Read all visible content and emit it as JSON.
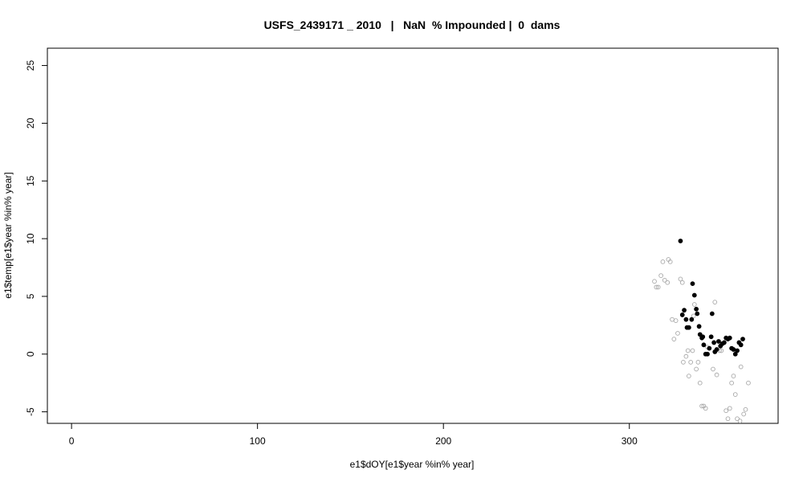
{
  "chart_data": {
    "type": "scatter",
    "title": "USFS_2439171 _ 2010   |   NaN  % Impounded |  0  dams",
    "xlabel": "e1$dOY[e1$year %in% year]",
    "ylabel": "e1$temp[e1$year %in% year]",
    "xlim": [
      -13,
      380
    ],
    "ylim": [
      -6,
      26.5
    ],
    "x_ticks": [
      0,
      100,
      200,
      300
    ],
    "x_tick_labels": [
      "0",
      "100",
      "200",
      "300"
    ],
    "y_ticks": [
      -5,
      0,
      5,
      10,
      15,
      20,
      25
    ],
    "y_tick_labels": [
      "-5",
      "0",
      "5",
      "10",
      "15",
      "20",
      "25"
    ],
    "grid": false,
    "legend": "none",
    "series": [
      {
        "marker": "open-circle",
        "color": "#a8a8a8",
        "points": [
          [
            313.5,
            6.3
          ],
          [
            314.5,
            5.8
          ],
          [
            315.5,
            5.8
          ],
          [
            317,
            6.8
          ],
          [
            318,
            8.0
          ],
          [
            319,
            6.4
          ],
          [
            320.5,
            6.2
          ],
          [
            321,
            8.2
          ],
          [
            322,
            8.0
          ],
          [
            323,
            3.0
          ],
          [
            324,
            1.3
          ],
          [
            325,
            2.9
          ],
          [
            326,
            1.8
          ],
          [
            327.5,
            6.5
          ],
          [
            328.5,
            6.2
          ],
          [
            329,
            -0.7
          ],
          [
            330.5,
            -0.2
          ],
          [
            331.5,
            0.3
          ],
          [
            332,
            -1.9
          ],
          [
            333,
            -0.7
          ],
          [
            334,
            0.3
          ],
          [
            334.5,
            3.3
          ],
          [
            335,
            4.3
          ],
          [
            336,
            -1.3
          ],
          [
            337,
            -0.7
          ],
          [
            338,
            -2.5
          ],
          [
            339,
            -4.5
          ],
          [
            340,
            -4.5
          ],
          [
            341,
            -4.7
          ],
          [
            342,
            0.6
          ],
          [
            345,
            -1.3
          ],
          [
            346,
            4.5
          ],
          [
            347,
            -1.8
          ],
          [
            348.5,
            0.3
          ],
          [
            349.5,
            0.3
          ],
          [
            352,
            -4.9
          ],
          [
            353,
            -5.6
          ],
          [
            354,
            -4.7
          ],
          [
            355,
            -2.5
          ],
          [
            356,
            -1.9
          ],
          [
            357,
            -3.5
          ],
          [
            358,
            -5.6
          ],
          [
            359.5,
            -5.8
          ],
          [
            360,
            -1.1
          ],
          [
            361.5,
            -5.2
          ],
          [
            362.5,
            -4.8
          ],
          [
            364,
            -2.5
          ]
        ]
      },
      {
        "marker": "filled-circle",
        "color": "#000000",
        "points": [
          [
            327.5,
            9.8
          ],
          [
            328.5,
            3.4
          ],
          [
            329.5,
            3.8
          ],
          [
            330.5,
            3.0
          ],
          [
            331,
            2.3
          ],
          [
            332,
            2.3
          ],
          [
            333.5,
            3.0
          ],
          [
            334,
            6.1
          ],
          [
            335,
            5.1
          ],
          [
            336,
            3.9
          ],
          [
            336.5,
            3.5
          ],
          [
            337.5,
            2.4
          ],
          [
            338,
            1.7
          ],
          [
            339,
            1.4
          ],
          [
            339.5,
            1.5
          ],
          [
            340,
            0.8
          ],
          [
            341,
            0.0
          ],
          [
            342,
            0.0
          ],
          [
            343,
            0.5
          ],
          [
            344,
            1.5
          ],
          [
            344.5,
            3.5
          ],
          [
            345.5,
            1.0
          ],
          [
            346,
            0.2
          ],
          [
            347,
            0.4
          ],
          [
            348,
            1.1
          ],
          [
            349,
            0.7
          ],
          [
            350,
            0.9
          ],
          [
            351,
            1.0
          ],
          [
            352,
            1.4
          ],
          [
            353,
            1.3
          ],
          [
            354,
            1.4
          ],
          [
            355,
            0.5
          ],
          [
            356,
            0.4
          ],
          [
            357,
            0.0
          ],
          [
            358,
            0.3
          ],
          [
            359,
            1.0
          ],
          [
            360,
            0.8
          ],
          [
            361,
            1.3
          ]
        ]
      }
    ]
  }
}
